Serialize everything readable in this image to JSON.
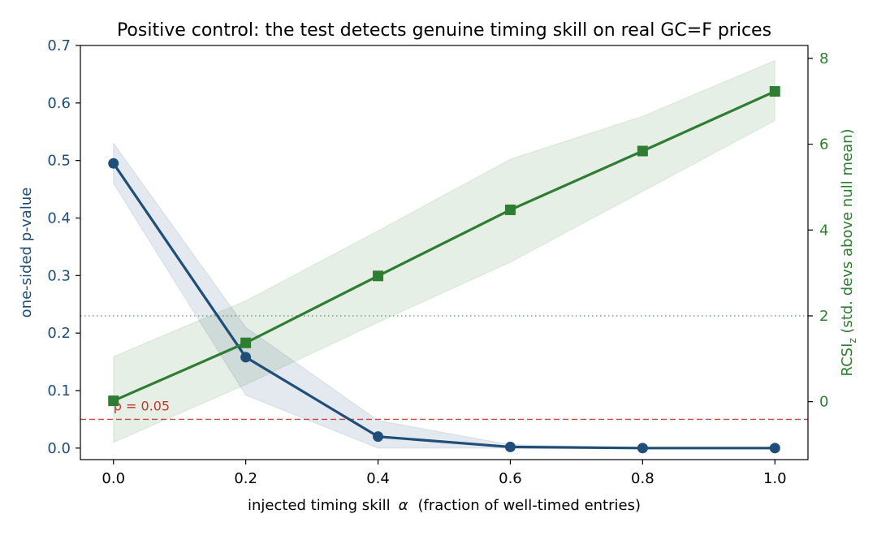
{
  "chart_data": {
    "type": "line",
    "title": "Positive control: the test detects genuine timing skill on real GC=F prices",
    "xlabel": {
      "prefix": "injected timing skill",
      "symbol": "α",
      "suffix": "(fraction of well-timed entries)"
    },
    "ylabel_left": "one-sided p-value",
    "ylabel_right": {
      "main": "RCSI",
      "sub": "z",
      "rest": " (std. devs above null mean)"
    },
    "x": [
      0.0,
      0.2,
      0.4,
      0.6,
      0.8,
      1.0
    ],
    "xlim": [
      -0.05,
      1.05
    ],
    "xticks": [
      "0.0",
      "0.2",
      "0.4",
      "0.6",
      "0.8",
      "1.0"
    ],
    "ylim_left": [
      -0.02,
      0.7
    ],
    "yticks_left": [
      "0.0",
      "0.1",
      "0.2",
      "0.3",
      "0.4",
      "0.5",
      "0.6",
      "0.7"
    ],
    "ylim_right": [
      -1.35,
      8.3
    ],
    "yticks_right": [
      "0",
      "2",
      "4",
      "6",
      "8"
    ],
    "series": [
      {
        "axis": "left",
        "marker": "circle",
        "color": "#1f4e79",
        "values": [
          0.495,
          0.158,
          0.02,
          0.002,
          0.0,
          0.0
        ],
        "band_low": [
          0.46,
          0.092,
          0.0,
          0.0,
          0.0,
          0.0
        ],
        "band_high": [
          0.53,
          0.21,
          0.048,
          0.006,
          0.001,
          0.001
        ]
      },
      {
        "axis": "right",
        "marker": "square",
        "color": "#2e7d32",
        "values": [
          0.02,
          1.37,
          2.93,
          4.47,
          5.84,
          7.23
        ],
        "band_low": [
          -0.95,
          0.4,
          1.85,
          3.25,
          4.9,
          6.55
        ],
        "band_high": [
          1.05,
          2.35,
          3.98,
          5.65,
          6.65,
          7.95
        ]
      }
    ],
    "reference_lines": [
      {
        "axis": "left",
        "value": 0.05,
        "style": "dashed",
        "color": "#c0392b",
        "label": "p = 0.05"
      },
      {
        "axis": "right",
        "value": 2,
        "style": "dotted",
        "color": "#2e7d32",
        "label": ""
      }
    ],
    "left_axis_color": "#1f4e79",
    "right_axis_color": "#2e7d32",
    "grid": false,
    "legend": "none"
  }
}
